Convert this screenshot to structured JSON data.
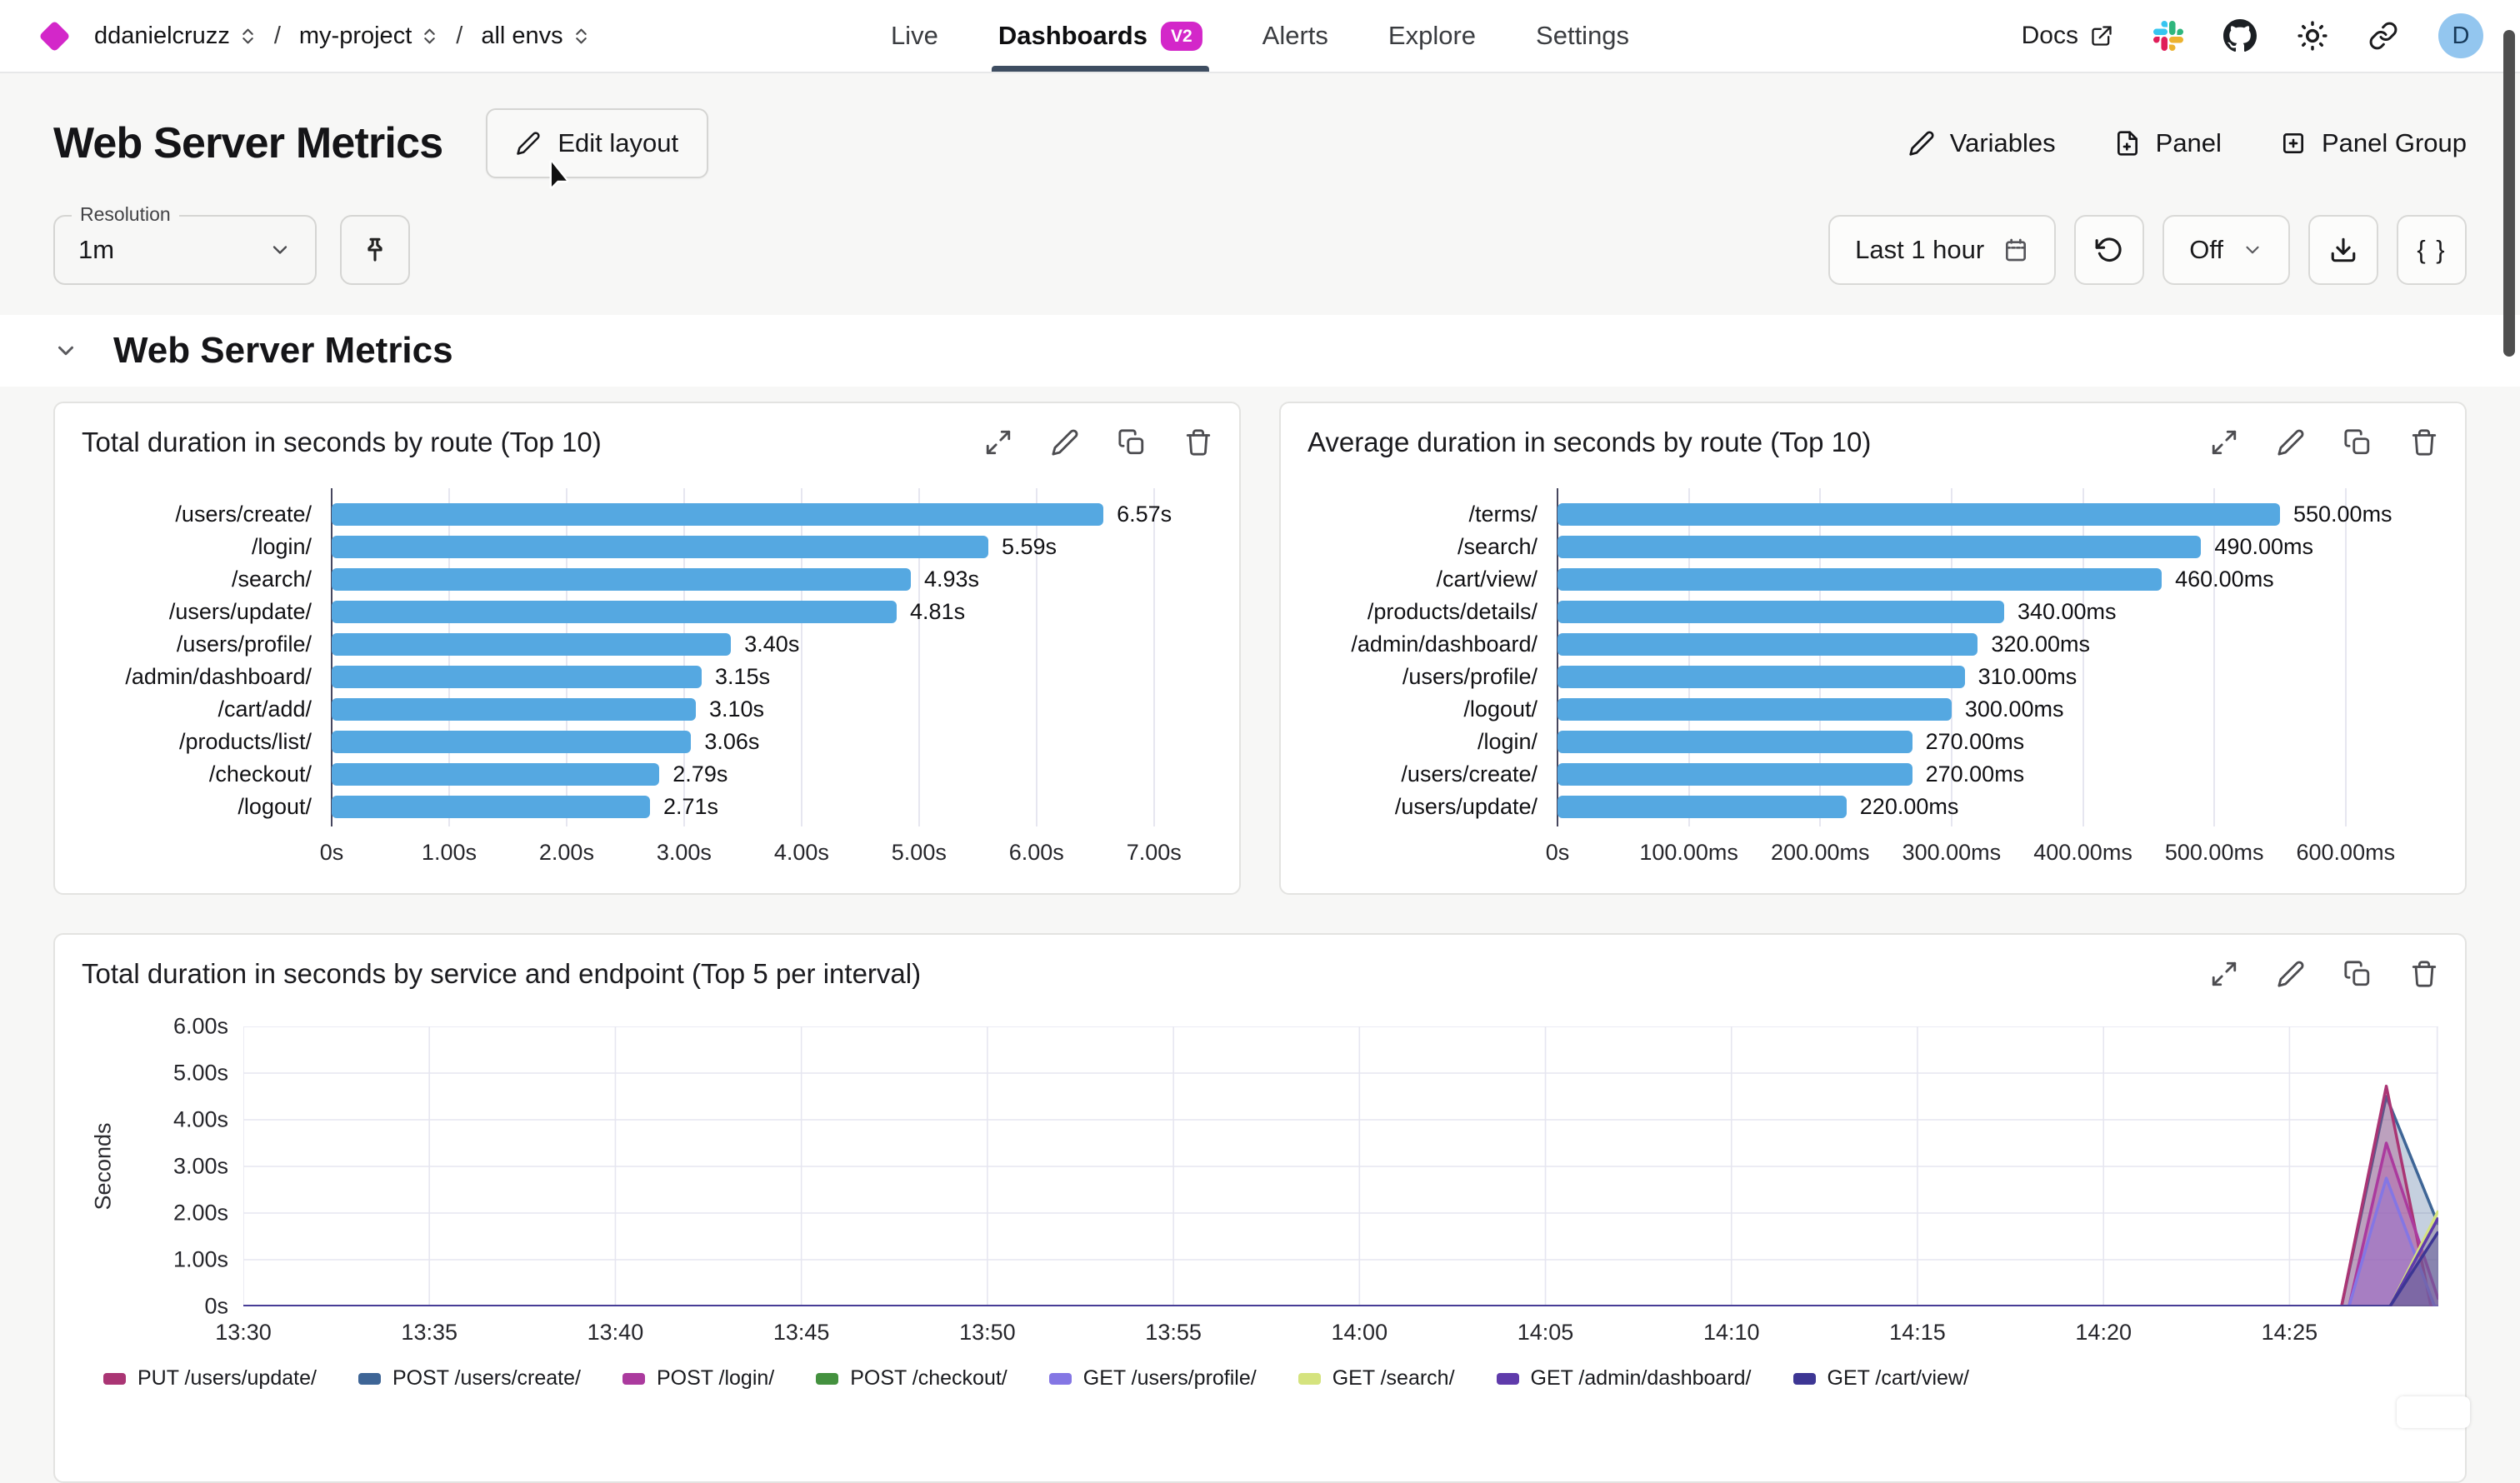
{
  "colors": {
    "brand_magenta": "#d327c9",
    "bar_blue": "#55a8e1",
    "tab_underline": "#3e4d61",
    "avatar_bg": "#93c6ef",
    "grid_line": "#e6e6f0",
    "axis_zero_line": "#46465e"
  },
  "nav": {
    "breadcrumb": {
      "org": "ddanielcruzz",
      "project": "my-project",
      "env": "all envs",
      "separator": "/"
    },
    "tabs": [
      {
        "label": "Live",
        "active": false
      },
      {
        "label": "Dashboards",
        "active": true,
        "badge": "V2"
      },
      {
        "label": "Alerts",
        "active": false
      },
      {
        "label": "Explore",
        "active": false
      },
      {
        "label": "Settings",
        "active": false
      }
    ],
    "docs_label": "Docs",
    "avatar_letter": "D",
    "icons": [
      "external-link-icon",
      "slack-icon",
      "github-icon",
      "theme-sun-icon",
      "copy-link-icon"
    ]
  },
  "header": {
    "title": "Web Server Metrics",
    "edit_layout_label": "Edit layout",
    "variables_label": "Variables",
    "panel_label": "Panel",
    "panel_group_label": "Panel Group"
  },
  "controls": {
    "resolution_label": "Resolution",
    "resolution_value": "1m",
    "time_range_label": "Last 1 hour",
    "refresh_mode_value": "Off",
    "braces_label": "{ }",
    "icons": [
      "chevron-down-icon",
      "pin-icon",
      "calendar-icon",
      "refresh-icon",
      "download-icon"
    ]
  },
  "section": {
    "title": "Web Server Metrics"
  },
  "panel_action_icons": [
    "expand-icon",
    "edit-icon",
    "duplicate-icon",
    "delete-icon"
  ],
  "chart_data": [
    {
      "type": "bar",
      "orientation": "horizontal",
      "title": "Total duration in seconds by route (Top 10)",
      "bar_color": "#55a8e1",
      "categories": [
        "/users/create/",
        "/login/",
        "/search/",
        "/users/update/",
        "/users/profile/",
        "/admin/dashboard/",
        "/cart/add/",
        "/products/list/",
        "/checkout/",
        "/logout/"
      ],
      "values": [
        6.57,
        5.59,
        4.93,
        4.81,
        3.4,
        3.15,
        3.1,
        3.06,
        2.79,
        2.71
      ],
      "value_labels": [
        "6.57s",
        "5.59s",
        "4.93s",
        "4.81s",
        "3.40s",
        "3.15s",
        "3.10s",
        "3.06s",
        "2.79s",
        "2.71s"
      ],
      "axis_max": 7.47,
      "x_ticks": [
        {
          "v": 0,
          "label": "0s"
        },
        {
          "v": 1,
          "label": "1.00s"
        },
        {
          "v": 2,
          "label": "2.00s"
        },
        {
          "v": 3,
          "label": "3.00s"
        },
        {
          "v": 4,
          "label": "4.00s"
        },
        {
          "v": 5,
          "label": "5.00s"
        },
        {
          "v": 6,
          "label": "6.00s"
        },
        {
          "v": 7,
          "label": "7.00s"
        }
      ]
    },
    {
      "type": "bar",
      "orientation": "horizontal",
      "title": "Average duration in seconds by route (Top 10)",
      "bar_color": "#55a8e1",
      "categories": [
        "/terms/",
        "/search/",
        "/cart/view/",
        "/products/details/",
        "/admin/dashboard/",
        "/users/profile/",
        "/logout/",
        "/login/",
        "/users/create/",
        "/users/update/"
      ],
      "values": [
        550,
        490,
        460,
        340,
        320,
        310,
        300,
        270,
        270,
        220
      ],
      "value_labels": [
        "550.00ms",
        "490.00ms",
        "460.00ms",
        "340.00ms",
        "320.00ms",
        "310.00ms",
        "300.00ms",
        "270.00ms",
        "270.00ms",
        "220.00ms"
      ],
      "axis_max": 668,
      "x_ticks": [
        {
          "v": 0,
          "label": "0s"
        },
        {
          "v": 100,
          "label": "100.00ms"
        },
        {
          "v": 200,
          "label": "200.00ms"
        },
        {
          "v": 300,
          "label": "300.00ms"
        },
        {
          "v": 400,
          "label": "400.00ms"
        },
        {
          "v": 500,
          "label": "500.00ms"
        },
        {
          "v": 600,
          "label": "600.00ms"
        }
      ]
    },
    {
      "type": "area",
      "title": "Total duration in seconds by service and endpoint (Top 5 per interval)",
      "ylabel": "Seconds",
      "x_domain": [
        0,
        59
      ],
      "y_domain": [
        0,
        6
      ],
      "y_ticks": [
        {
          "v": 6,
          "label": "6.00s"
        },
        {
          "v": 5,
          "label": "5.00s"
        },
        {
          "v": 4,
          "label": "4.00s"
        },
        {
          "v": 3,
          "label": "3.00s"
        },
        {
          "v": 2,
          "label": "2.00s"
        },
        {
          "v": 1,
          "label": "1.00s"
        },
        {
          "v": 0,
          "label": "0s"
        }
      ],
      "x_ticks": [
        {
          "m": 0,
          "label": "13:30"
        },
        {
          "m": 5,
          "label": "13:35"
        },
        {
          "m": 10,
          "label": "13:40"
        },
        {
          "m": 15,
          "label": "13:45"
        },
        {
          "m": 20,
          "label": "13:50"
        },
        {
          "m": 25,
          "label": "13:55"
        },
        {
          "m": 30,
          "label": "14:00"
        },
        {
          "m": 35,
          "label": "14:05"
        },
        {
          "m": 40,
          "label": "14:10"
        },
        {
          "m": 45,
          "label": "14:15"
        },
        {
          "m": 50,
          "label": "14:20"
        },
        {
          "m": 55,
          "label": "14:25"
        }
      ],
      "series": [
        {
          "name": "PUT /users/update/",
          "color": "#aa3574",
          "points": [
            [
              0,
              0
            ],
            [
              56.4,
              0
            ],
            [
              57.6,
              4.72
            ],
            [
              58.8,
              0
            ],
            [
              59,
              0
            ]
          ]
        },
        {
          "name": "POST /users/create/",
          "color": "#3e6596",
          "points": [
            [
              0,
              0
            ],
            [
              56.4,
              0
            ],
            [
              57.6,
              4.5
            ],
            [
              59,
              1.75
            ]
          ]
        },
        {
          "name": "POST /login/",
          "color": "#ab3a9e",
          "points": [
            [
              0,
              0
            ],
            [
              56.6,
              0
            ],
            [
              57.6,
              3.5
            ],
            [
              59,
              0.15
            ]
          ]
        },
        {
          "name": "POST /checkout/",
          "color": "#44913f",
          "points": [
            [
              0,
              0
            ],
            [
              59,
              0
            ]
          ]
        },
        {
          "name": "GET /users/profile/",
          "color": "#8476e4",
          "points": [
            [
              0,
              0
            ],
            [
              56.6,
              0
            ],
            [
              57.6,
              2.75
            ],
            [
              58.9,
              0
            ],
            [
              59,
              0
            ]
          ]
        },
        {
          "name": "GET /search/",
          "color": "#d5e37e",
          "points": [
            [
              0,
              0
            ],
            [
              57.7,
              0
            ],
            [
              59,
              2.05
            ]
          ]
        },
        {
          "name": "GET /admin/dashboard/",
          "color": "#5f3bab",
          "points": [
            [
              0,
              0
            ],
            [
              57.7,
              0
            ],
            [
              59,
              1.9
            ]
          ]
        },
        {
          "name": "GET /cart/view/",
          "color": "#3d3694",
          "points": [
            [
              0,
              0
            ],
            [
              57.7,
              0
            ],
            [
              59,
              1.6
            ]
          ]
        }
      ],
      "draw_order": [
        3,
        1,
        0,
        2,
        4,
        5,
        6,
        7
      ],
      "legend_position": "bottom",
      "grid": true
    }
  ]
}
